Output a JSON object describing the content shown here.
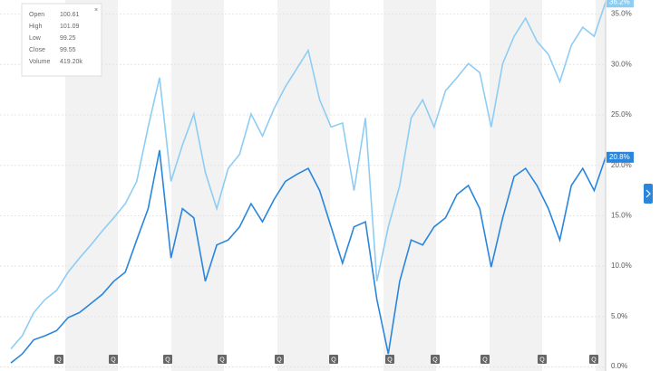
{
  "chart_data": {
    "type": "line",
    "series": [
      {
        "name": null,
        "color": "#8ecdf3",
        "last_label": "36.2%",
        "values": [
          1.8,
          3.1,
          5.4,
          6.7,
          7.6,
          9.4,
          10.8,
          12.1,
          13.5,
          14.8,
          16.2,
          18.4,
          23.8,
          28.7,
          18.4,
          22.0,
          25.1,
          19.3,
          15.7,
          19.7,
          21.1,
          25.1,
          22.9,
          25.6,
          27.8,
          29.6,
          31.4,
          26.5,
          23.8,
          24.2,
          17.5,
          24.7,
          8.5,
          13.9,
          18.0,
          24.7,
          26.5,
          23.8,
          27.4,
          28.7,
          30.1,
          29.2,
          23.8,
          30.1,
          32.8,
          34.6,
          32.3,
          31.0,
          28.3,
          31.9,
          33.7,
          32.8,
          36.2
        ]
      },
      {
        "name": null,
        "color": "#2a86dc",
        "last_label": "20.8%",
        "values": [
          0.4,
          1.3,
          2.7,
          3.1,
          3.6,
          4.9,
          5.4,
          6.3,
          7.2,
          8.5,
          9.4,
          12.6,
          15.7,
          21.5,
          10.8,
          15.7,
          14.8,
          8.5,
          12.1,
          12.6,
          13.9,
          16.2,
          14.4,
          16.6,
          18.4,
          19.1,
          19.7,
          17.5,
          13.9,
          10.3,
          13.9,
          14.4,
          6.7,
          1.3,
          8.5,
          12.6,
          12.1,
          13.9,
          14.8,
          17.1,
          18.0,
          15.7,
          9.9,
          14.8,
          18.9,
          19.7,
          18.0,
          15.7,
          12.6,
          18.0,
          19.7,
          17.5,
          20.8
        ]
      }
    ],
    "ylim": [
      -0.4,
      36.4
    ],
    "yticks": [
      {
        "value": 0,
        "label": "0.0%"
      },
      {
        "value": 5,
        "label": "5.0%"
      },
      {
        "value": 10,
        "label": "10.0%"
      },
      {
        "value": 15,
        "label": "15.0%"
      },
      {
        "value": 20,
        "label": "20.0%"
      },
      {
        "value": 25,
        "label": "25.0%"
      },
      {
        "value": 30,
        "label": "30.0%"
      },
      {
        "value": 35,
        "label": "35.0%"
      }
    ],
    "grid": true,
    "event_label": "Q",
    "tooltip": {
      "close": "×",
      "rows": [
        {
          "label": "Open",
          "value": 100.61
        },
        {
          "label": "High",
          "value": 101.09
        },
        {
          "label": "Low",
          "value": 99.25
        },
        {
          "label": "Close",
          "value": 99.55
        },
        {
          "label": "Volume",
          "value": "419.20k"
        }
      ]
    }
  }
}
